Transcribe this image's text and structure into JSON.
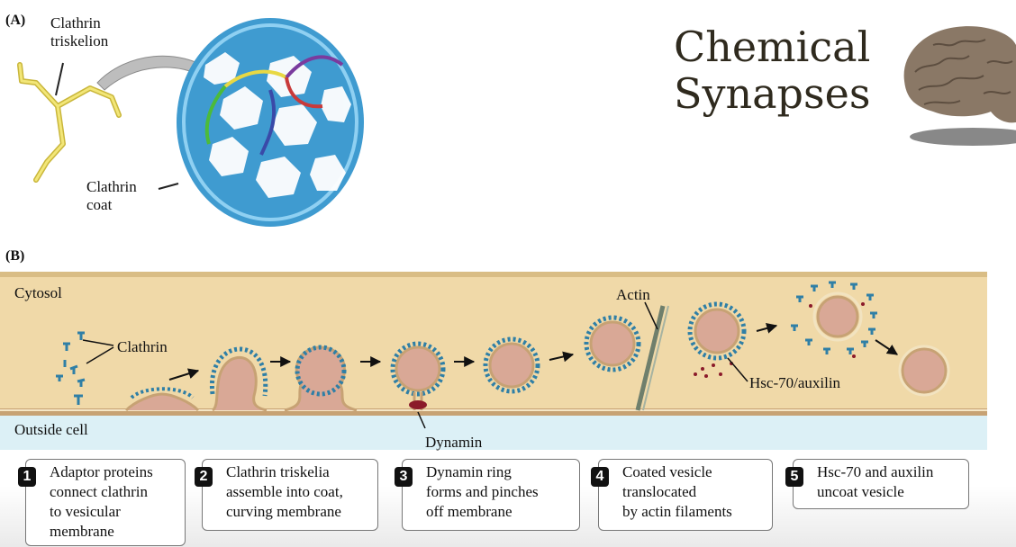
{
  "title": {
    "line1": "Chemical",
    "line2": "Synapses"
  },
  "panel_a": {
    "label": "(A)",
    "triskelion_label_1": "Clathrin",
    "triskelion_label_2": "triskelion",
    "coat_label_1": "Clathrin",
    "coat_label_2": "coat"
  },
  "panel_b": {
    "label": "(B)",
    "cytosol": "Cytosol",
    "outside": "Outside cell",
    "clathrin": "Clathrin",
    "actin": "Actin",
    "dynamin": "Dynamin",
    "hsc": "Hsc-70/auxilin"
  },
  "steps": [
    {
      "num": "1",
      "text": "Adaptor proteins\nconnect clathrin\nto vesicular\nmembrane"
    },
    {
      "num": "2",
      "text": "Clathrin triskelia\nassemble into coat,\ncurving membrane"
    },
    {
      "num": "3",
      "text": "Dynamin ring\nforms and pinches\noff membrane"
    },
    {
      "num": "4",
      "text": "Coated vesicle\ntranslocated\nby actin filaments"
    },
    {
      "num": "5",
      "text": "Hsc-70 and auxilin\nuncoat vesicle"
    }
  ],
  "colors": {
    "cytosol": "#f0d9a8",
    "outside": "#dcf0f6",
    "coat": "#2f7fa6",
    "vesicle": "#d9a896",
    "membrane": "#c7a274"
  }
}
